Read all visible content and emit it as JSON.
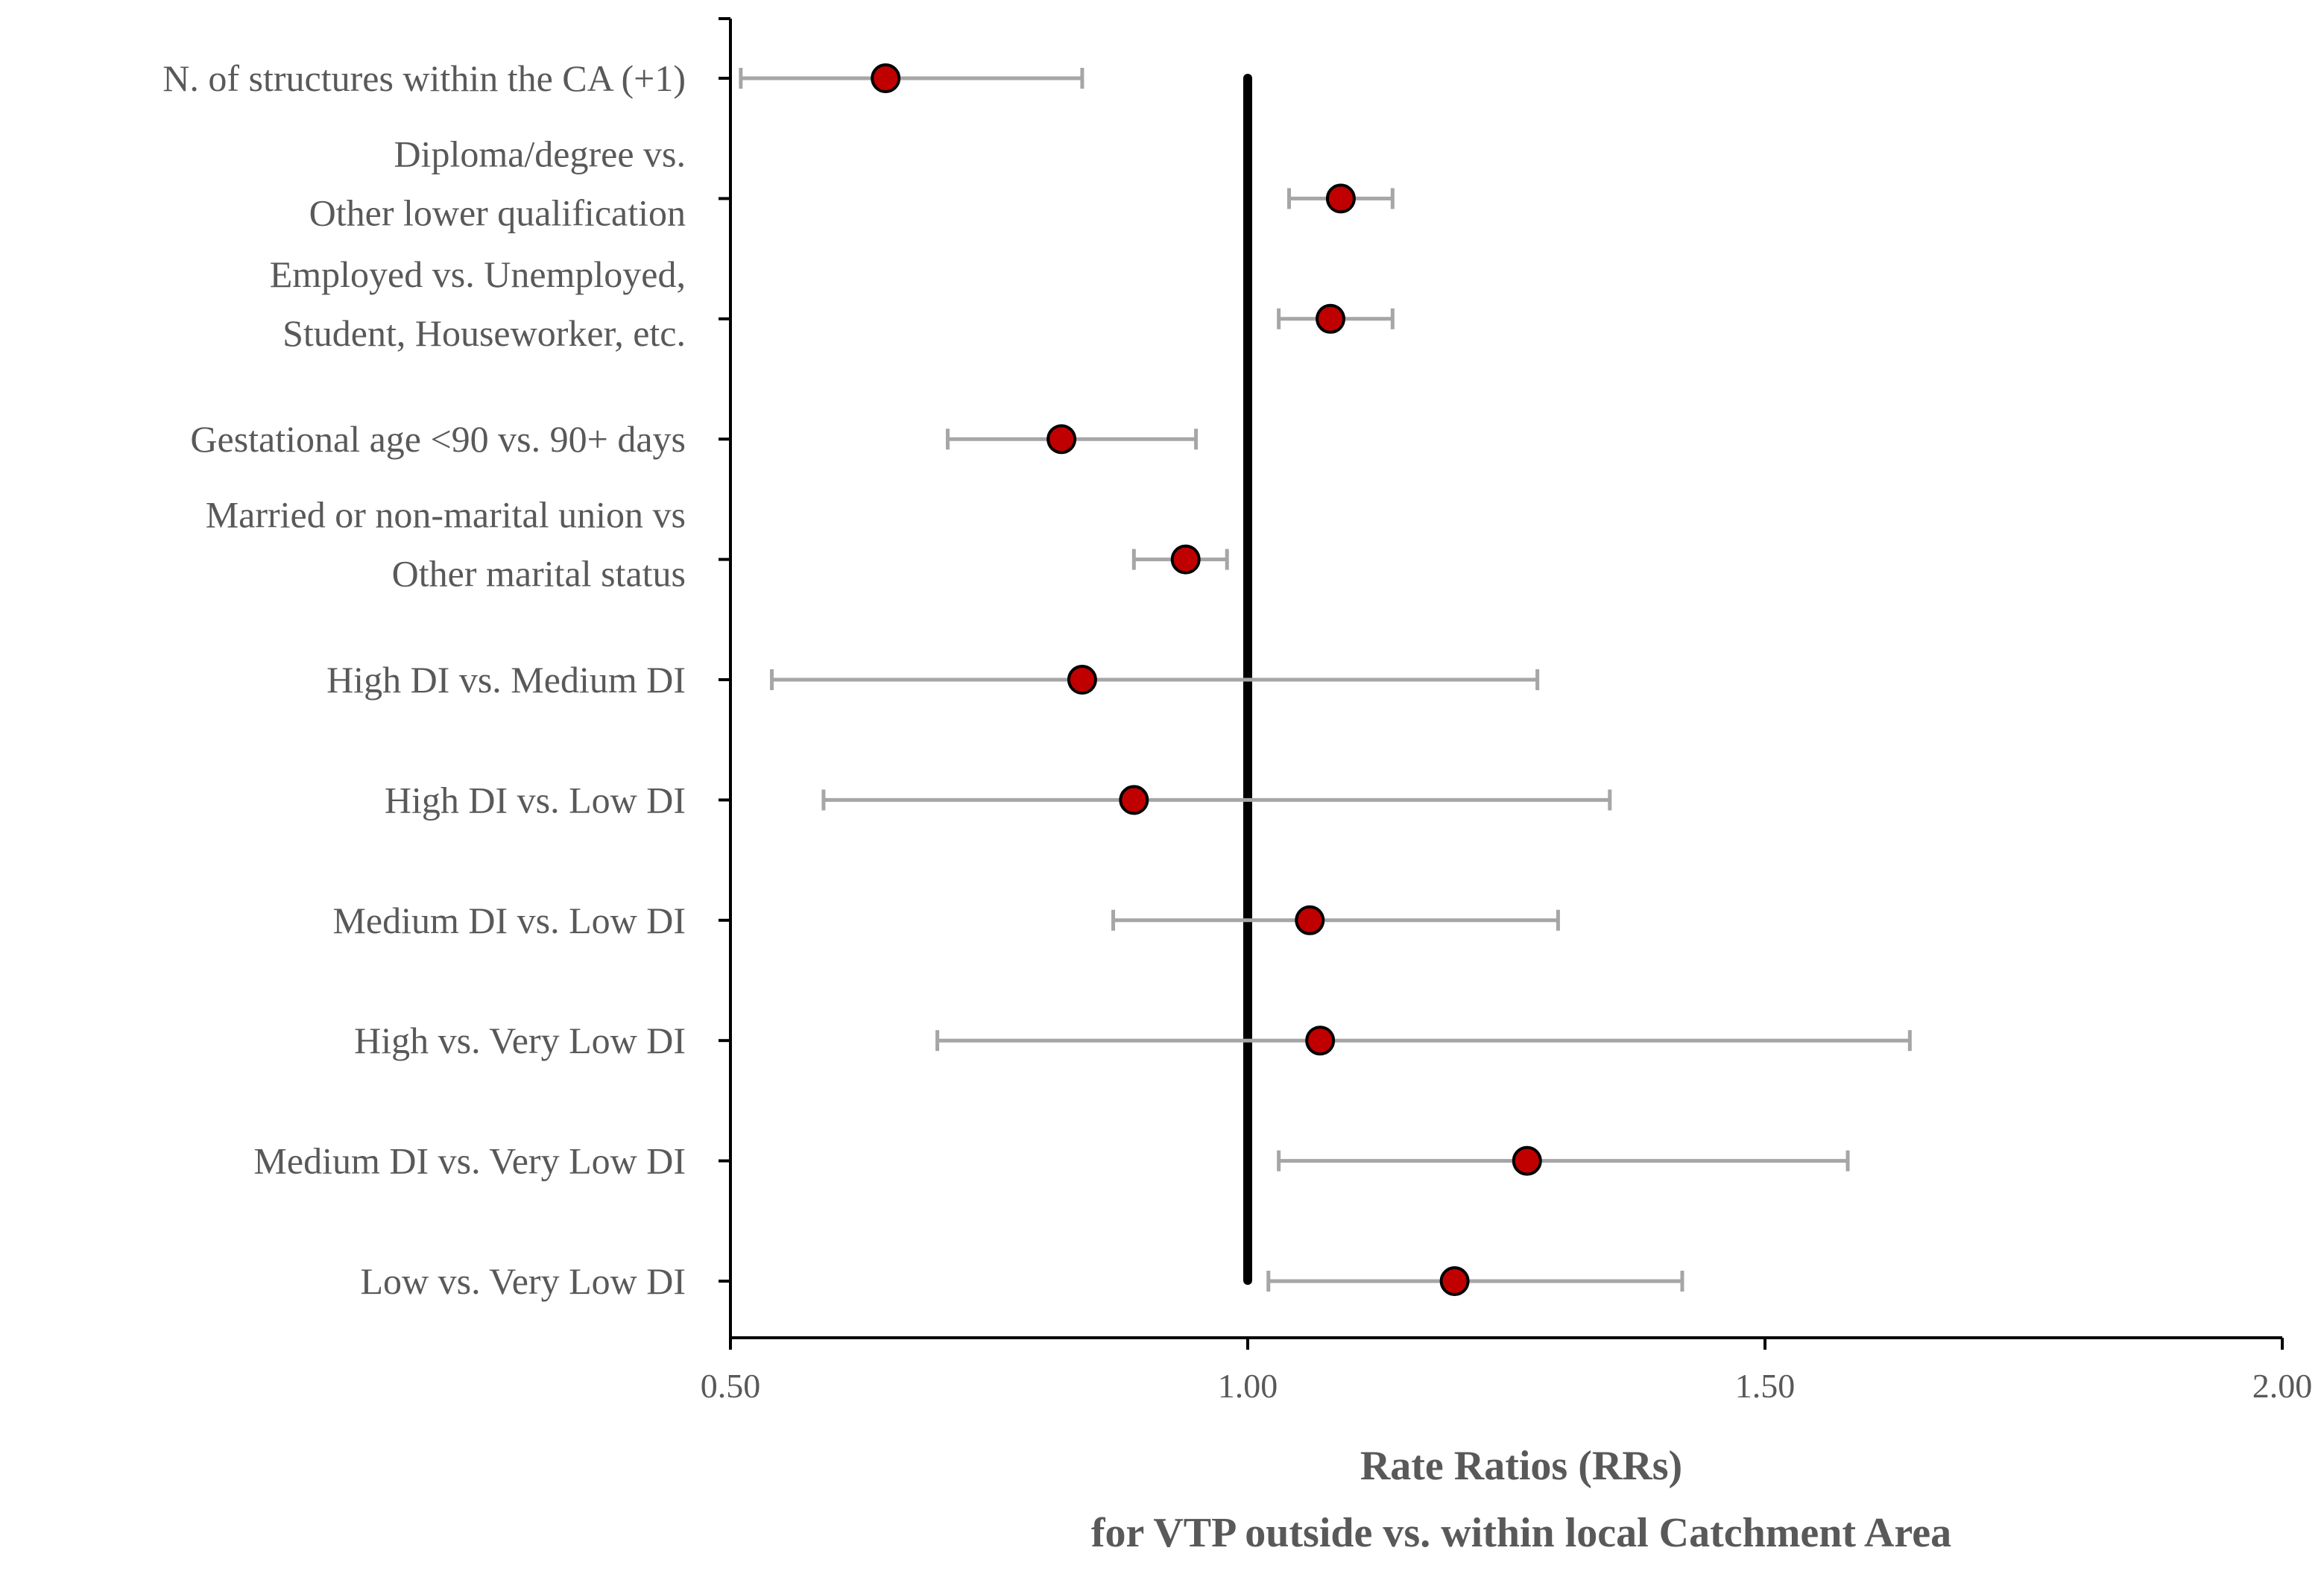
{
  "chart_data": {
    "type": "forest",
    "xlabel": "Rate Ratios (RRs)",
    "xlabel_line2": "for VTP outside vs. within local Catchment Area",
    "xlim": [
      0.5,
      2.0
    ],
    "xticks": [
      0.5,
      1.0,
      1.5,
      2.0
    ],
    "xtick_labels": [
      "0.50",
      "1.00",
      "1.50",
      "2.00"
    ],
    "reference_value": 1.0,
    "point_color": "#c00000",
    "errorbar_color": "#a6a6a6",
    "rows": [
      {
        "label_lines": [
          "N. of structures within the CA (+1)"
        ],
        "rr": 0.65,
        "lo": 0.51,
        "hi": 0.84
      },
      {
        "label_lines": [
          "Diploma/degree vs.",
          "Other lower qualification"
        ],
        "rr": 1.09,
        "lo": 1.04,
        "hi": 1.14
      },
      {
        "label_lines": [
          "Employed vs. Unemployed,",
          "Student, Houseworker, etc."
        ],
        "rr": 1.08,
        "lo": 1.03,
        "hi": 1.14
      },
      {
        "label_lines": [
          "Gestational age <90 vs. 90+ days"
        ],
        "rr": 0.82,
        "lo": 0.71,
        "hi": 0.95
      },
      {
        "label_lines": [
          "Married or non-marital union vs",
          "Other marital status"
        ],
        "rr": 0.94,
        "lo": 0.89,
        "hi": 0.98
      },
      {
        "label_lines": [
          "High DI vs. Medium DI"
        ],
        "rr": 0.84,
        "lo": 0.54,
        "hi": 1.28
      },
      {
        "label_lines": [
          "High DI vs. Low DI"
        ],
        "rr": 0.89,
        "lo": 0.59,
        "hi": 1.35
      },
      {
        "label_lines": [
          "Medium DI vs. Low DI"
        ],
        "rr": 1.06,
        "lo": 0.87,
        "hi": 1.3
      },
      {
        "label_lines": [
          "High vs. Very Low DI"
        ],
        "rr": 1.07,
        "lo": 0.7,
        "hi": 1.64
      },
      {
        "label_lines": [
          "Medium DI vs. Very Low DI"
        ],
        "rr": 1.27,
        "lo": 1.03,
        "hi": 1.58
      },
      {
        "label_lines": [
          "Low vs. Very Low DI"
        ],
        "rr": 1.2,
        "lo": 1.02,
        "hi": 1.42
      }
    ]
  }
}
